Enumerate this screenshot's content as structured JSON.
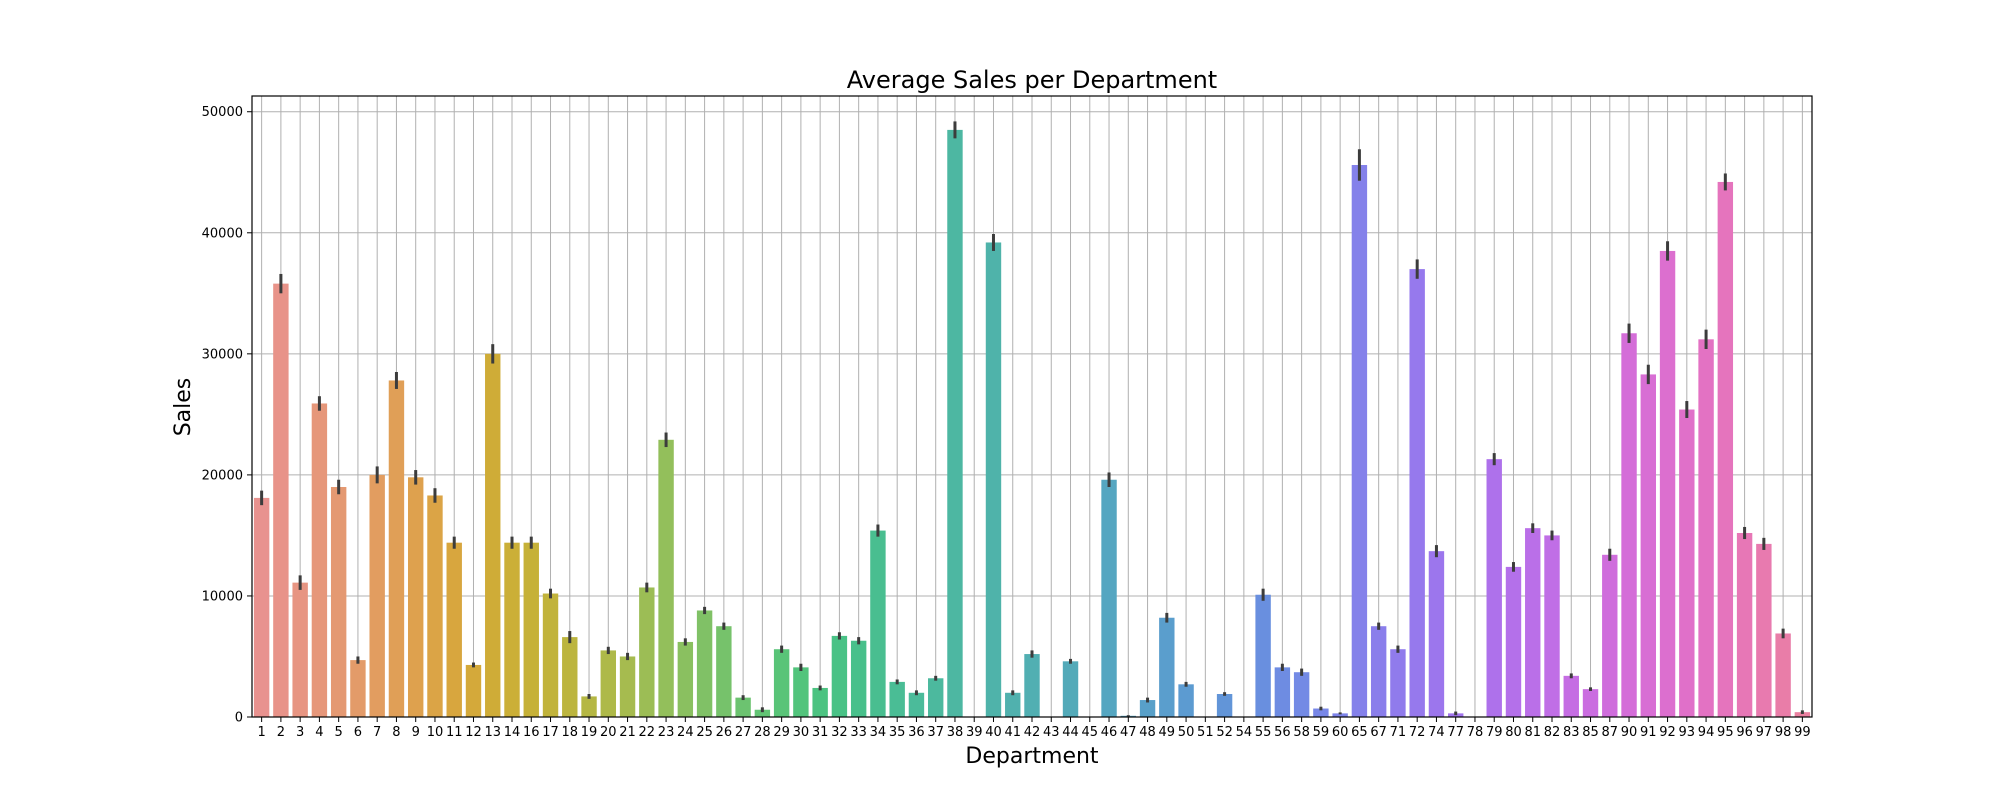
{
  "chart_data": {
    "type": "bar",
    "title": "Average Sales per Department",
    "xlabel": "Department",
    "ylabel": "Sales",
    "ylim": [
      0,
      51300
    ],
    "yticks": [
      0,
      10000,
      20000,
      30000,
      40000,
      50000
    ],
    "grid": true,
    "categories": [
      "1",
      "2",
      "3",
      "4",
      "5",
      "6",
      "7",
      "8",
      "9",
      "10",
      "11",
      "12",
      "13",
      "14",
      "16",
      "17",
      "18",
      "19",
      "20",
      "21",
      "22",
      "23",
      "24",
      "25",
      "26",
      "27",
      "28",
      "29",
      "30",
      "31",
      "32",
      "33",
      "34",
      "35",
      "36",
      "37",
      "38",
      "39",
      "40",
      "41",
      "42",
      "43",
      "44",
      "45",
      "46",
      "47",
      "48",
      "49",
      "50",
      "51",
      "52",
      "54",
      "55",
      "56",
      "58",
      "59",
      "60",
      "65",
      "67",
      "71",
      "72",
      "74",
      "77",
      "78",
      "79",
      "80",
      "81",
      "82",
      "83",
      "85",
      "87",
      "90",
      "91",
      "92",
      "93",
      "94",
      "95",
      "96",
      "97",
      "98",
      "99"
    ],
    "values": [
      18100,
      35800,
      11100,
      25900,
      19000,
      4700,
      20000,
      27800,
      19800,
      18300,
      14400,
      4300,
      30000,
      14400,
      14400,
      10200,
      6600,
      1700,
      5500,
      5000,
      10700,
      22900,
      6200,
      8800,
      7500,
      1600,
      600,
      5600,
      4100,
      2400,
      6700,
      6300,
      15400,
      2900,
      2000,
      3200,
      48500,
      0,
      39200,
      2000,
      5200,
      0,
      4600,
      0,
      19600,
      100,
      1400,
      8200,
      2700,
      0,
      1900,
      0,
      10100,
      4100,
      3700,
      700,
      300,
      45600,
      7500,
      5600,
      37000,
      13700,
      300,
      0,
      21300,
      12400,
      15600,
      15000,
      3400,
      2300,
      13400,
      31700,
      28300,
      38500,
      25400,
      31200,
      44200,
      15200,
      14300,
      6900,
      400
    ],
    "errors": [
      600,
      800,
      600,
      600,
      600,
      300,
      700,
      700,
      600,
      600,
      500,
      200,
      800,
      500,
      500,
      400,
      500,
      200,
      300,
      300,
      400,
      600,
      300,
      300,
      300,
      200,
      200,
      300,
      300,
      200,
      300,
      300,
      500,
      200,
      200,
      200,
      700,
      0,
      700,
      200,
      300,
      0,
      200,
      0,
      600,
      50,
      200,
      400,
      200,
      0,
      150,
      0,
      500,
      300,
      300,
      150,
      80,
      1300,
      300,
      300,
      800,
      500,
      150,
      0,
      500,
      400,
      400,
      400,
      200,
      150,
      500,
      800,
      800,
      800,
      700,
      800,
      700,
      500,
      500,
      400,
      150
    ],
    "colors": [
      "#e8928f",
      "#e89389",
      "#e79582",
      "#e6977a",
      "#e49972",
      "#e39b69",
      "#e29d60",
      "#e09f57",
      "#dea14e",
      "#dba446",
      "#d8a63e",
      "#d4a93a",
      "#cfac37",
      "#cbaf37",
      "#c6b138",
      "#c1b33b",
      "#bcb53f",
      "#b5b744",
      "#aeb949",
      "#a6bb4f",
      "#9cbd55",
      "#93bf5b",
      "#8ac060",
      "#80c166",
      "#76c26b",
      "#6cc370",
      "#62c474",
      "#59c478",
      "#52c47c",
      "#4cc381",
      "#49c286",
      "#48c08b",
      "#49be90",
      "#4abd95",
      "#4bbb9a",
      "#4cb99e",
      "#4db7a2",
      "#4eb5a6",
      "#4fb3aa",
      "#50b1ae",
      "#51afb2",
      "#52adb5",
      "#53aab9",
      "#54a8bd",
      "#55a6c1",
      "#57a3c5",
      "#58a0c9",
      "#5a9ecd",
      "#5c9bd1",
      "#5f98d5",
      "#6295d8",
      "#6592dc",
      "#698fdf",
      "#6e8ce2",
      "#738ae5",
      "#7887e7",
      "#7e84e9",
      "#8481ea",
      "#8a7eeb",
      "#907bec",
      "#9679ed",
      "#9c76ed",
      "#a274ed",
      "#a872ec",
      "#ae71eb",
      "#b470ea",
      "#ba6fe8",
      "#c06ee6",
      "#c56de3",
      "#ca6de0",
      "#cf6ddc",
      "#d46dd8",
      "#d86ed4",
      "#dc6fcf",
      "#e070c9",
      "#e372c3",
      "#e574bd",
      "#e777b6",
      "#e87aaf",
      "#e97da8",
      "#ea80a0"
    ]
  }
}
